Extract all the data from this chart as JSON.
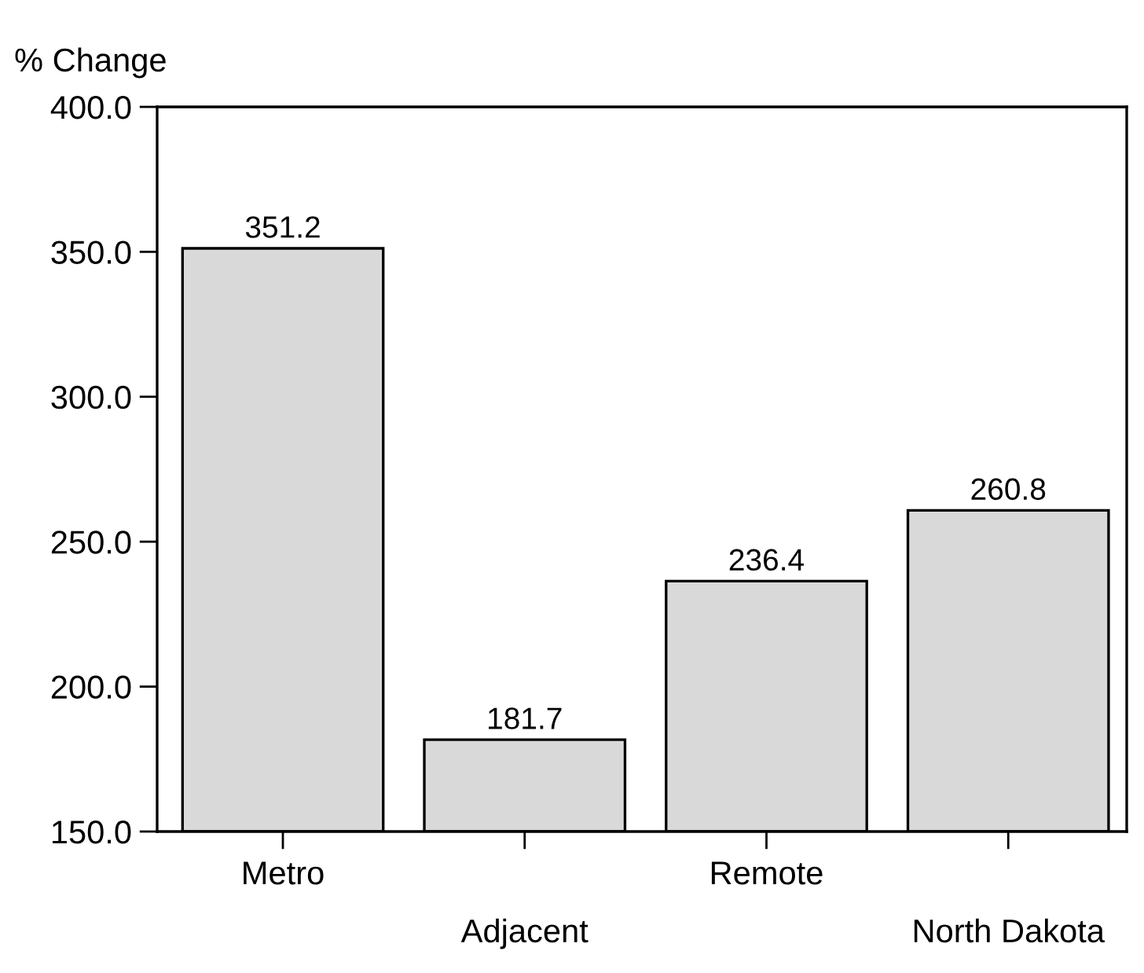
{
  "chart_data": {
    "type": "bar",
    "ylabel": "% Change",
    "categories": [
      "Metro",
      "Adjacent",
      "Remote",
      "North Dakota"
    ],
    "values": [
      351.2,
      181.7,
      236.4,
      260.8
    ],
    "color": "#d9d9d9",
    "ylim": [
      150,
      400
    ],
    "yticks": [
      {
        "value": 150,
        "label": "150.0"
      },
      {
        "value": 200,
        "label": "200.0"
      },
      {
        "value": 250,
        "label": "250.0"
      },
      {
        "value": 300,
        "label": "300.0"
      },
      {
        "value": 350,
        "label": "350.0"
      },
      {
        "value": 400,
        "label": "400.0"
      }
    ],
    "data_labels": true,
    "grid": false,
    "legend": false
  }
}
